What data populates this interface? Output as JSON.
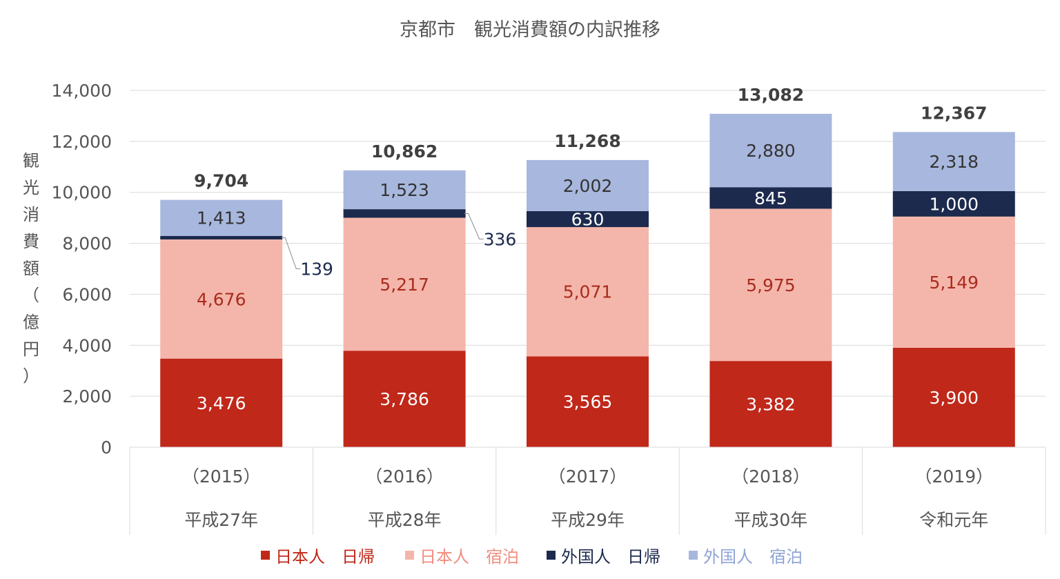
{
  "chart_data": {
    "type": "stacked-bar",
    "title": "京都市　観光消費額の内訳推移",
    "ylabel": "観光消費額（億円）",
    "xlabel": "",
    "ylim": [
      0,
      14000
    ],
    "yticks": [
      "0",
      "2,000",
      "4,000",
      "6,000",
      "8,000",
      "10,000",
      "12,000",
      "14,000"
    ],
    "ytick_values": [
      0,
      2000,
      4000,
      6000,
      8000,
      10000,
      12000,
      14000
    ],
    "grid": true,
    "legend_position": "bottom",
    "categories": [
      {
        "year": "（2015）",
        "era": "平成27年"
      },
      {
        "year": "（2016）",
        "era": "平成28年"
      },
      {
        "year": "（2017）",
        "era": "平成29年"
      },
      {
        "year": "（2018）",
        "era": "平成30年"
      },
      {
        "year": "（2019）",
        "era": "令和元年"
      }
    ],
    "series": [
      {
        "name": "日本人　日帰",
        "color": "#C0281A",
        "label_color": "#FFFFFF",
        "values": [
          3476,
          3786,
          3565,
          3382,
          3900
        ],
        "labels": [
          "3,476",
          "3,786",
          "3,565",
          "3,382",
          "3,900"
        ]
      },
      {
        "name": "日本人　宿泊",
        "color": "#F4B6AA",
        "label_color": "#A82C1E",
        "values": [
          4676,
          5217,
          5071,
          5975,
          5149
        ],
        "labels": [
          "4,676",
          "5,217",
          "5,071",
          "5,975",
          "5,149"
        ]
      },
      {
        "name": "外国人　日帰",
        "color": "#1C2A4E",
        "label_color": "#FFFFFF",
        "values": [
          139,
          336,
          630,
          845,
          1000
        ],
        "labels": [
          "139",
          "336",
          "630",
          "845",
          "1,000"
        ]
      },
      {
        "name": "外国人　宿泊",
        "color": "#A8B7DD",
        "label_color": "#333333",
        "values": [
          1413,
          1523,
          2002,
          2880,
          2318
        ],
        "labels": [
          "1,413",
          "1,523",
          "2,002",
          "2,880",
          "2,318"
        ]
      }
    ],
    "totals": [
      9704,
      10862,
      11268,
      13082,
      12367
    ],
    "total_labels": [
      "9,704",
      "10,862",
      "11,268",
      "13,082",
      "12,367"
    ],
    "legend_text_colors": [
      "#C0281A",
      "#F08E7E",
      "#1C2A4E",
      "#8FA4D6"
    ]
  }
}
